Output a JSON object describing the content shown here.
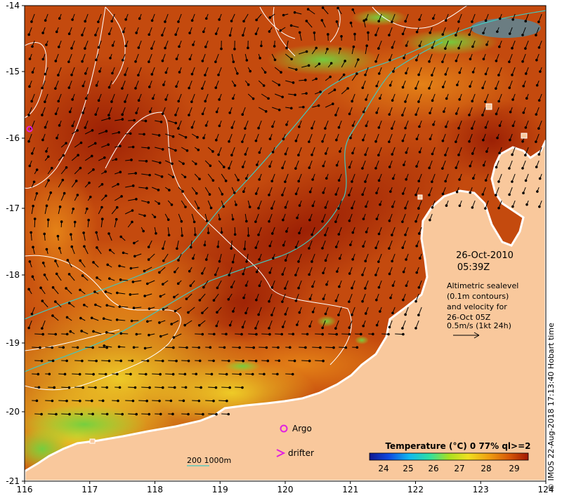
{
  "map": {
    "date": "26-Oct-2010",
    "time": "05:39Z",
    "legend_lines": [
      "Altimetric sealevel",
      "(0.1m contours)",
      "and velocity for",
      "26-Oct 05Z",
      "0.5m/s (1kt 24h)"
    ],
    "lon_ticks": [
      "116",
      "117",
      "118",
      "119",
      "120",
      "121",
      "122",
      "123",
      "124"
    ],
    "lat_ticks": [
      "-14",
      "-15",
      "-16",
      "-17",
      "-18",
      "-19",
      "-20",
      "-21"
    ],
    "colorbar_title": "Temperature (°C) 0 77% ql>=2",
    "colorbar_ticks": [
      "24",
      "25",
      "26",
      "27",
      "28",
      "29"
    ],
    "argo_label": "Argo",
    "drifter_label": "drifter",
    "depth_label": "200  1000m",
    "credit": "© IMOS 22-Aug-2018 17:13:40 Hobart time",
    "colors": {
      "land": "#f9c89c",
      "sea_warm": "#c0440c",
      "sea_hot": "#9a1e04",
      "sea_mid": "#e07c14",
      "sea_cool": "#f0c020",
      "sea_green": "#98dc30",
      "isobath": "#40c8c0",
      "contour": "#ffffff",
      "argo": "#e020e0"
    }
  }
}
